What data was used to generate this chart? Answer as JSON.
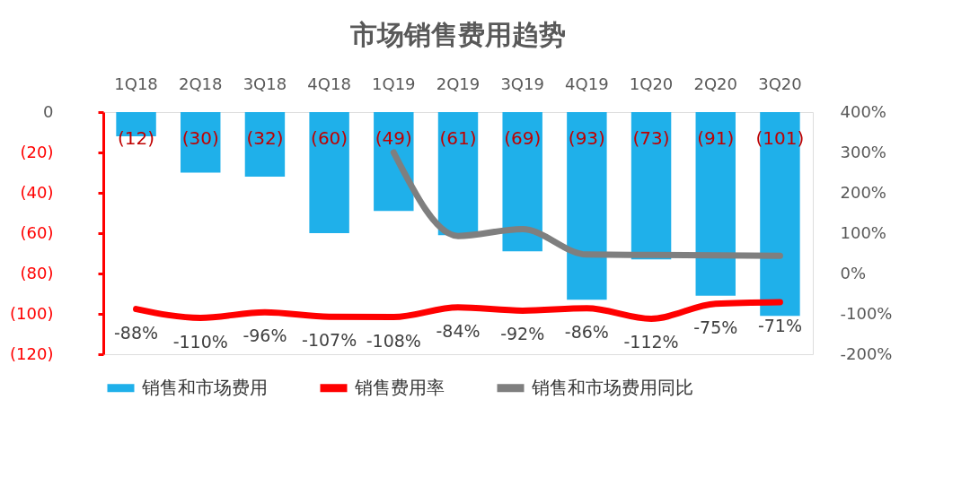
{
  "chart_data": {
    "type": "bar",
    "title": "市场销售费用趋势",
    "categories": [
      "1Q18",
      "2Q18",
      "3Q18",
      "4Q18",
      "1Q19",
      "2Q19",
      "3Q19",
      "4Q19",
      "1Q20",
      "2Q20",
      "3Q20"
    ],
    "series": [
      {
        "name": "销售和市场费用",
        "color": "#1fb0ea",
        "values": [
          -12,
          -30,
          -32,
          -60,
          -49,
          -61,
          -69,
          -93,
          -73,
          -91,
          -101
        ],
        "value_labels": [
          "(12)",
          "(30)",
          "(32)",
          "(60)",
          "(49)",
          "(61)",
          "(69)",
          "(93)",
          "(73)",
          "(91)",
          "(101)"
        ]
      },
      {
        "name": "销售费用率",
        "type": "line",
        "axis": "y2",
        "color": "#ff0000",
        "values": [
          -88,
          -110,
          -96,
          -107,
          -108,
          -84,
          -92,
          -86,
          -112,
          -75,
          -71
        ],
        "value_labels": [
          "-88%",
          "-110%",
          "-96%",
          "-107%",
          "-108%",
          "-84%",
          "-92%",
          "-86%",
          "-112%",
          "-75%",
          "-71%"
        ]
      },
      {
        "name": "销售和市场费用同比",
        "type": "line",
        "axis": "y2",
        "color": "#7f7f7f",
        "values": [
          null,
          null,
          null,
          null,
          300,
          93,
          110,
          47,
          46,
          45,
          44
        ]
      }
    ],
    "ylim": [
      -120,
      0
    ],
    "yticks": [
      {
        "value": -120,
        "label": "(120)"
      },
      {
        "value": -100,
        "label": "(100)"
      },
      {
        "value": -80,
        "label": "(80)"
      },
      {
        "value": -60,
        "label": "(60)"
      },
      {
        "value": -40,
        "label": "(40)"
      },
      {
        "value": -20,
        "label": "(20)"
      },
      0
    ],
    "y2lim": [
      -200,
      400
    ],
    "y2ticks": [
      {
        "value": -200,
        "label": "-200%"
      },
      {
        "value": -100,
        "label": "-100%"
      },
      {
        "value": 0,
        "label": "0%"
      },
      {
        "value": 100,
        "label": "100%"
      },
      {
        "value": 200,
        "label": "200%"
      },
      {
        "value": 300,
        "label": "300%"
      },
      {
        "value": 400,
        "label": "400%"
      }
    ],
    "legend": "bottom",
    "grid": false
  }
}
